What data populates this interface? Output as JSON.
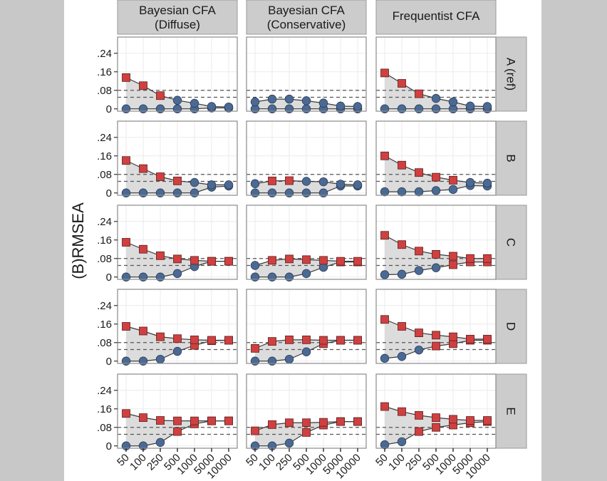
{
  "chart_data": {
    "type": "line",
    "facet_layout": "grid 5 rows x 3 columns",
    "ylabel": "(B)RMSEA",
    "xlabel": "",
    "x_tick_labels": [
      "50",
      "100",
      "250",
      "500",
      "1000",
      "5000",
      "10000"
    ],
    "y_ticks": [
      0,
      0.08,
      0.16,
      0.24
    ],
    "y_tick_labels": [
      "0",
      ".08",
      ".16",
      ".24"
    ],
    "ylim": [
      -0.01,
      0.31
    ],
    "reference_lines": [
      0.05,
      0.08
    ],
    "reference_line_style": "dashed",
    "grid": true,
    "marker_rule": "square red when value > .05 cutoff, circle blue otherwise",
    "colors": {
      "above": "#d04040",
      "below": "#4a6a94",
      "ribbon": "#dcdcdc",
      "strip": "#cccccc",
      "line": "#3a3a3a"
    },
    "columns": [
      "Bayesian CFA\n(Diffuse)",
      "Bayesian CFA\n(Conservative)",
      "Frequentist CFA"
    ],
    "column_lines": [
      [
        "Bayesian CFA",
        "(Diffuse)"
      ],
      [
        "Bayesian CFA",
        "(Conservative)"
      ],
      [
        "Frequentist CFA"
      ]
    ],
    "rows": [
      "A (ref)",
      "B",
      "C",
      "D",
      "E"
    ],
    "panels": [
      [
        {
          "upper": [
            0.135,
            0.1,
            0.057,
            0.037,
            0.024,
            0.01,
            0.008
          ],
          "lower": [
            0,
            0,
            0,
            0,
            0,
            0.004,
            0.004
          ]
        },
        {
          "upper": [
            0.03,
            0.042,
            0.042,
            0.035,
            0.025,
            0.012,
            0.01
          ],
          "lower": [
            0,
            0,
            0,
            0,
            0,
            0,
            0
          ]
        },
        {
          "upper": [
            0.155,
            0.11,
            0.065,
            0.045,
            0.03,
            0.012,
            0.01
          ],
          "lower": [
            0,
            0,
            0,
            0,
            0,
            0,
            0
          ]
        }
      ],
      [
        {
          "upper": [
            0.14,
            0.105,
            0.07,
            0.052,
            0.045,
            0.035,
            0.035
          ],
          "lower": [
            0,
            0,
            0,
            0,
            0,
            0.025,
            0.03
          ]
        },
        {
          "upper": [
            0.04,
            0.052,
            0.053,
            0.05,
            0.048,
            0.038,
            0.035
          ],
          "lower": [
            0,
            0,
            0,
            0,
            0,
            0.03,
            0.03
          ]
        },
        {
          "upper": [
            0.16,
            0.12,
            0.088,
            0.068,
            0.055,
            0.045,
            0.042
          ],
          "lower": [
            0.005,
            0.005,
            0.005,
            0.01,
            0.015,
            0.032,
            0.03
          ]
        }
      ],
      [
        {
          "upper": [
            0.15,
            0.12,
            0.092,
            0.078,
            0.072,
            0.068,
            0.068
          ],
          "lower": [
            0,
            0,
            0,
            0.015,
            0.045,
            0.068,
            0.068
          ]
        },
        {
          "upper": [
            0.05,
            0.072,
            0.078,
            0.075,
            0.072,
            0.068,
            0.068
          ],
          "lower": [
            0,
            0,
            0,
            0.015,
            0.042,
            0.065,
            0.065
          ]
        },
        {
          "upper": [
            0.18,
            0.14,
            0.112,
            0.098,
            0.09,
            0.08,
            0.08
          ],
          "lower": [
            0.01,
            0.012,
            0.028,
            0.04,
            0.053,
            0.065,
            0.065
          ]
        }
      ],
      [
        {
          "upper": [
            0.15,
            0.13,
            0.105,
            0.097,
            0.092,
            0.09,
            0.09
          ],
          "lower": [
            0,
            0,
            0.008,
            0.042,
            0.068,
            0.088,
            0.09
          ]
        },
        {
          "upper": [
            0.055,
            0.085,
            0.092,
            0.092,
            0.09,
            0.09,
            0.09
          ],
          "lower": [
            0,
            0,
            0.008,
            0.04,
            0.075,
            0.09,
            0.09
          ]
        },
        {
          "upper": [
            0.18,
            0.15,
            0.122,
            0.112,
            0.105,
            0.095,
            0.095
          ],
          "lower": [
            0.012,
            0.02,
            0.048,
            0.065,
            0.075,
            0.09,
            0.09
          ]
        }
      ],
      [
        {
          "upper": [
            0.14,
            0.122,
            0.11,
            0.108,
            0.108,
            0.108,
            0.108
          ],
          "lower": [
            0,
            0,
            0.015,
            0.062,
            0.095,
            0.108,
            0.108
          ]
        },
        {
          "upper": [
            0.065,
            0.092,
            0.1,
            0.1,
            0.102,
            0.105,
            0.105
          ],
          "lower": [
            0,
            0,
            0.012,
            0.058,
            0.09,
            0.105,
            0.105
          ]
        },
        {
          "upper": [
            0.17,
            0.148,
            0.132,
            0.122,
            0.115,
            0.11,
            0.11
          ],
          "lower": [
            0.005,
            0.018,
            0.062,
            0.08,
            0.09,
            0.1,
            0.105
          ]
        }
      ]
    ]
  }
}
